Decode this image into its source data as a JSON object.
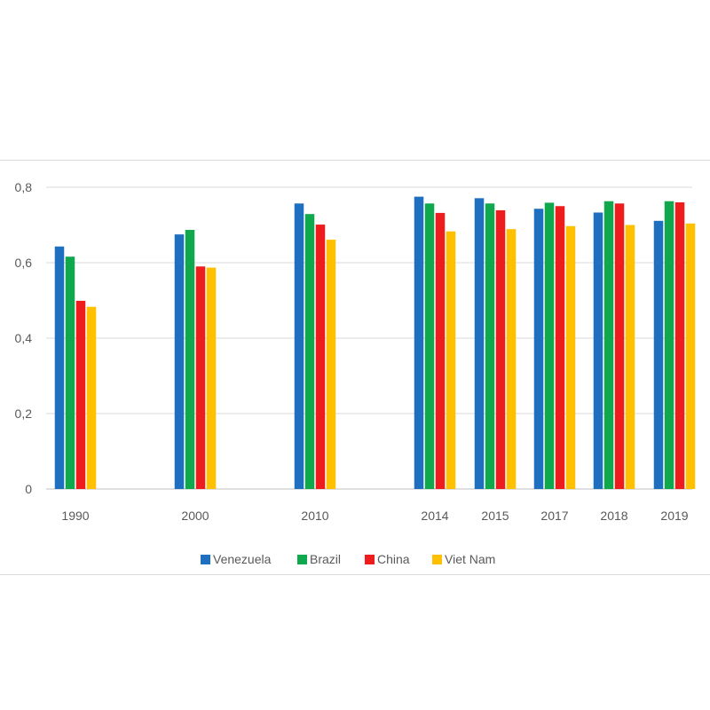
{
  "chart_data": {
    "type": "bar",
    "categories": [
      "1990",
      "2000",
      "2010",
      "2014",
      "2015",
      "2017",
      "2018",
      "2019"
    ],
    "series": [
      {
        "name": "Venezuela",
        "color": "#1f6fc0",
        "values": [
          0.643,
          0.675,
          0.757,
          0.775,
          0.771,
          0.743,
          0.733,
          0.711
        ]
      },
      {
        "name": "Brazil",
        "color": "#10a84c",
        "values": [
          0.616,
          0.687,
          0.729,
          0.757,
          0.757,
          0.759,
          0.763,
          0.763
        ]
      },
      {
        "name": "China",
        "color": "#ee1c1c",
        "values": [
          0.499,
          0.59,
          0.701,
          0.732,
          0.739,
          0.75,
          0.757,
          0.76
        ]
      },
      {
        "name": "Viet Nam",
        "color": "#ffc000",
        "values": [
          0.483,
          0.587,
          0.661,
          0.683,
          0.689,
          0.697,
          0.7,
          0.704
        ]
      }
    ],
    "yticks": [
      "0",
      "0,2",
      "0,4",
      "0,6",
      "0,8"
    ],
    "ylim": [
      0,
      0.8
    ],
    "grid": true,
    "legend": "bottom"
  }
}
